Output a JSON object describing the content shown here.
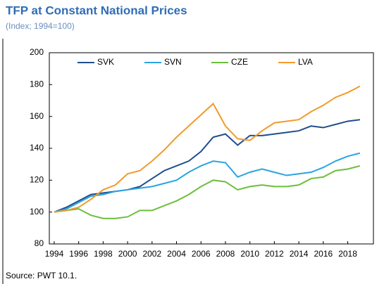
{
  "chart_data": {
    "type": "line",
    "title": "TFP at Constant National Prices",
    "subtitle": "(Index; 1994=100)",
    "source": "Source: PWT 10.1.",
    "x": [
      1994,
      1995,
      1996,
      1997,
      1998,
      1999,
      2000,
      2001,
      2002,
      2003,
      2004,
      2005,
      2006,
      2007,
      2008,
      2009,
      2010,
      2011,
      2012,
      2013,
      2014,
      2015,
      2016,
      2017,
      2018,
      2019
    ],
    "series": [
      {
        "name": "SVK",
        "color": "#1f4e8c",
        "values": [
          100,
          103,
          107,
          111,
          112,
          113,
          114,
          116,
          121,
          126,
          129,
          132,
          138,
          147,
          149,
          142,
          148,
          148,
          149,
          150,
          151,
          154,
          153,
          155,
          157,
          158
        ]
      },
      {
        "name": "SVN",
        "color": "#2aa4e0",
        "values": [
          100,
          102,
          106,
          110,
          111,
          113,
          114,
          115,
          116,
          118,
          120,
          125,
          129,
          132,
          131,
          122,
          125,
          127,
          125,
          123,
          124,
          125,
          128,
          132,
          135,
          137
        ]
      },
      {
        "name": "CZE",
        "color": "#6cbf3b",
        "values": [
          100,
          101,
          102,
          98,
          96,
          96,
          97,
          101,
          101,
          104,
          107,
          111,
          116,
          120,
          119,
          114,
          116,
          117,
          116,
          116,
          117,
          121,
          122,
          126,
          127,
          129
        ]
      },
      {
        "name": "LVA",
        "color": "#f39a2a",
        "values": [
          100,
          101,
          103,
          108,
          114,
          117,
          124,
          126,
          132,
          139,
          147,
          154,
          161,
          168,
          154,
          146,
          145,
          151,
          156,
          157,
          158,
          163,
          167,
          172,
          175,
          179
        ]
      }
    ],
    "xlim": [
      1993.6,
      2020.1
    ],
    "xticks": [
      1994,
      1996,
      1998,
      2000,
      2002,
      2004,
      2006,
      2008,
      2010,
      2012,
      2014,
      2016,
      2018
    ],
    "ylim": [
      80,
      200
    ],
    "yticks": [
      80,
      100,
      120,
      140,
      160,
      180,
      200
    ],
    "legend": "top"
  }
}
